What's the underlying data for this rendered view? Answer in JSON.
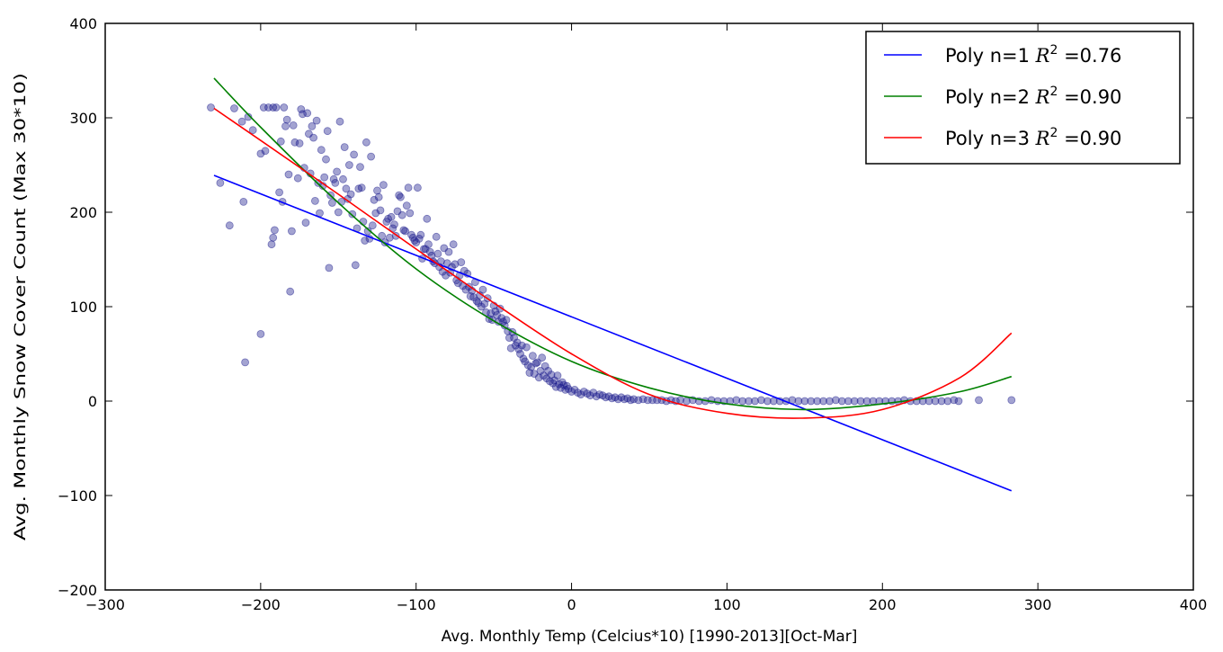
{
  "chart_data": {
    "type": "scatter",
    "title": "",
    "xlabel": "Avg. Monthly Temp (Celcius*10) [1990-2013][Oct-Mar]",
    "ylabel": "Avg. Monthly Snow Cover Count (Max 30*10)",
    "xlim": [
      -300,
      400
    ],
    "ylim": [
      -200,
      400
    ],
    "xticks": [
      "−300",
      "−200",
      "−100",
      "0",
      "100",
      "200",
      "300",
      "400"
    ],
    "yticks": [
      "−200",
      "−100",
      "0",
      "100",
      "200",
      "300",
      "400"
    ],
    "grid": false,
    "legend_position": "top-right",
    "scatter": {
      "color": "#1a1a8c",
      "points": [
        [
          -232,
          311
        ],
        [
          -226,
          231
        ],
        [
          -220,
          186
        ],
        [
          -217,
          310
        ],
        [
          -212,
          296
        ],
        [
          -211,
          211
        ],
        [
          -210,
          41
        ],
        [
          -208,
          301
        ],
        [
          -205,
          287
        ],
        [
          -200,
          71
        ],
        [
          -200,
          262
        ],
        [
          -198,
          311
        ],
        [
          -197,
          265
        ],
        [
          -195,
          311
        ],
        [
          -193,
          166
        ],
        [
          -192,
          311
        ],
        [
          -192,
          173
        ],
        [
          -191,
          181
        ],
        [
          -190,
          311
        ],
        [
          -188,
          221
        ],
        [
          -187,
          275
        ],
        [
          -186,
          211
        ],
        [
          -185,
          311
        ],
        [
          -184,
          291
        ],
        [
          -183,
          298
        ],
        [
          -182,
          240
        ],
        [
          -181,
          116
        ],
        [
          -180,
          180
        ],
        [
          -179,
          292
        ],
        [
          -178,
          274
        ],
        [
          -176,
          236
        ],
        [
          -175,
          273
        ],
        [
          -174,
          309
        ],
        [
          -173,
          304
        ],
        [
          -172,
          247
        ],
        [
          -171,
          189
        ],
        [
          -170,
          305
        ],
        [
          -169,
          283
        ],
        [
          -168,
          241
        ],
        [
          -167,
          291
        ],
        [
          -166,
          279
        ],
        [
          -165,
          212
        ],
        [
          -164,
          297
        ],
        [
          -163,
          231
        ],
        [
          -162,
          199
        ],
        [
          -161,
          266
        ],
        [
          -160,
          228
        ],
        [
          -159,
          237
        ],
        [
          -158,
          256
        ],
        [
          -157,
          286
        ],
        [
          -156,
          141
        ],
        [
          -155,
          218
        ],
        [
          -154,
          210
        ],
        [
          -153,
          235
        ],
        [
          -152,
          231
        ],
        [
          -151,
          243
        ],
        [
          -150,
          200
        ],
        [
          -149,
          296
        ],
        [
          -148,
          211
        ],
        [
          -147,
          235
        ],
        [
          -146,
          269
        ],
        [
          -145,
          225
        ],
        [
          -144,
          214
        ],
        [
          -143,
          250
        ],
        [
          -142,
          219
        ],
        [
          -141,
          198
        ],
        [
          -140,
          261
        ],
        [
          -139,
          144
        ],
        [
          -138,
          183
        ],
        [
          -137,
          225
        ],
        [
          -136,
          248
        ],
        [
          -135,
          226
        ],
        [
          -134,
          190
        ],
        [
          -133,
          170
        ],
        [
          -132,
          274
        ],
        [
          -131,
          180
        ],
        [
          -130,
          172
        ],
        [
          -129,
          259
        ],
        [
          -128,
          186
        ],
        [
          -127,
          213
        ],
        [
          -126,
          199
        ],
        [
          -125,
          223
        ],
        [
          -124,
          216
        ],
        [
          -123,
          202
        ],
        [
          -122,
          175
        ],
        [
          -121,
          229
        ],
        [
          -120,
          168
        ],
        [
          -119,
          190
        ],
        [
          -118,
          193
        ],
        [
          -117,
          173
        ],
        [
          -116,
          195
        ],
        [
          -115,
          183
        ],
        [
          -114,
          187
        ],
        [
          -113,
          175
        ],
        [
          -112,
          201
        ],
        [
          -111,
          218
        ],
        [
          -110,
          216
        ],
        [
          -109,
          197
        ],
        [
          -108,
          181
        ],
        [
          -107,
          180
        ],
        [
          -106,
          207
        ],
        [
          -105,
          226
        ],
        [
          -104,
          199
        ],
        [
          -103,
          176
        ],
        [
          -102,
          173
        ],
        [
          -101,
          170
        ],
        [
          -100,
          168
        ],
        [
          -99,
          226
        ],
        [
          -98,
          172
        ],
        [
          -97,
          176
        ],
        [
          -96,
          151
        ],
        [
          -95,
          161
        ],
        [
          -94,
          161
        ],
        [
          -93,
          193
        ],
        [
          -92,
          166
        ],
        [
          -91,
          158
        ],
        [
          -90,
          154
        ],
        [
          -89,
          148
        ],
        [
          -88,
          146
        ],
        [
          -87,
          174
        ],
        [
          -86,
          156
        ],
        [
          -85,
          142
        ],
        [
          -84,
          148
        ],
        [
          -83,
          137
        ],
        [
          -82,
          162
        ],
        [
          -81,
          133
        ],
        [
          -80,
          146
        ],
        [
          -79,
          158
        ],
        [
          -78,
          136
        ],
        [
          -77,
          142
        ],
        [
          -76,
          166
        ],
        [
          -75,
          145
        ],
        [
          -74,
          128
        ],
        [
          -73,
          125
        ],
        [
          -72,
          133
        ],
        [
          -71,
          147
        ],
        [
          -70,
          122
        ],
        [
          -69,
          138
        ],
        [
          -68,
          118
        ],
        [
          -67,
          135
        ],
        [
          -66,
          121
        ],
        [
          -65,
          111
        ],
        [
          -64,
          117
        ],
        [
          -63,
          110
        ],
        [
          -62,
          126
        ],
        [
          -61,
          106
        ],
        [
          -60,
          104
        ],
        [
          -59,
          112
        ],
        [
          -58,
          100
        ],
        [
          -57,
          118
        ],
        [
          -56,
          103
        ],
        [
          -55,
          94
        ],
        [
          -54,
          109
        ],
        [
          -53,
          87
        ],
        [
          -52,
          93
        ],
        [
          -51,
          86
        ],
        [
          -50,
          101
        ],
        [
          -49,
          95
        ],
        [
          -48,
          91
        ],
        [
          -47,
          84
        ],
        [
          -46,
          98
        ],
        [
          -45,
          88
        ],
        [
          -44,
          84
        ],
        [
          -43,
          80
        ],
        [
          -42,
          86
        ],
        [
          -41,
          74
        ],
        [
          -40,
          67
        ],
        [
          -39,
          56
        ],
        [
          -38,
          73
        ],
        [
          -37,
          67
        ],
        [
          -36,
          59
        ],
        [
          -35,
          62
        ],
        [
          -34,
          55
        ],
        [
          -33,
          50
        ],
        [
          -32,
          59
        ],
        [
          -31,
          45
        ],
        [
          -30,
          42
        ],
        [
          -29,
          57
        ],
        [
          -28,
          38
        ],
        [
          -27,
          30
        ],
        [
          -26,
          36
        ],
        [
          -25,
          48
        ],
        [
          -24,
          29
        ],
        [
          -23,
          40
        ],
        [
          -22,
          41
        ],
        [
          -21,
          25
        ],
        [
          -20,
          32
        ],
        [
          -19,
          46
        ],
        [
          -18,
          27
        ],
        [
          -17,
          37
        ],
        [
          -16,
          24
        ],
        [
          -15,
          32
        ],
        [
          -14,
          21
        ],
        [
          -13,
          28
        ],
        [
          -12,
          19
        ],
        [
          -11,
          22
        ],
        [
          -10,
          15
        ],
        [
          -9,
          27
        ],
        [
          -8,
          18
        ],
        [
          -7,
          14
        ],
        [
          -6,
          20
        ],
        [
          -5,
          17
        ],
        [
          -4,
          12
        ],
        [
          -3,
          16
        ],
        [
          -2,
          13
        ],
        [
          0,
          10
        ],
        [
          2,
          12
        ],
        [
          4,
          9
        ],
        [
          6,
          7
        ],
        [
          8,
          10
        ],
        [
          10,
          8
        ],
        [
          12,
          6
        ],
        [
          14,
          9
        ],
        [
          16,
          5
        ],
        [
          18,
          7
        ],
        [
          20,
          6
        ],
        [
          22,
          4
        ],
        [
          24,
          5
        ],
        [
          26,
          3
        ],
        [
          28,
          4
        ],
        [
          30,
          2
        ],
        [
          32,
          4
        ],
        [
          34,
          2
        ],
        [
          36,
          3
        ],
        [
          38,
          1
        ],
        [
          40,
          2
        ],
        [
          43,
          1
        ],
        [
          46,
          2
        ],
        [
          49,
          1
        ],
        [
          52,
          1
        ],
        [
          55,
          1
        ],
        [
          58,
          1
        ],
        [
          61,
          0
        ],
        [
          64,
          1
        ],
        [
          67,
          0
        ],
        [
          70,
          1
        ],
        [
          74,
          0
        ],
        [
          78,
          1
        ],
        [
          82,
          0
        ],
        [
          86,
          0
        ],
        [
          90,
          1
        ],
        [
          94,
          0
        ],
        [
          98,
          0
        ],
        [
          102,
          0
        ],
        [
          106,
          1
        ],
        [
          110,
          0
        ],
        [
          114,
          0
        ],
        [
          118,
          0
        ],
        [
          122,
          1
        ],
        [
          126,
          0
        ],
        [
          130,
          0
        ],
        [
          134,
          0
        ],
        [
          138,
          0
        ],
        [
          142,
          1
        ],
        [
          146,
          0
        ],
        [
          150,
          0
        ],
        [
          154,
          0
        ],
        [
          158,
          0
        ],
        [
          162,
          0
        ],
        [
          166,
          0
        ],
        [
          170,
          1
        ],
        [
          174,
          0
        ],
        [
          178,
          0
        ],
        [
          182,
          0
        ],
        [
          186,
          0
        ],
        [
          190,
          0
        ],
        [
          194,
          0
        ],
        [
          198,
          0
        ],
        [
          202,
          0
        ],
        [
          206,
          0
        ],
        [
          210,
          0
        ],
        [
          214,
          1
        ],
        [
          218,
          0
        ],
        [
          222,
          0
        ],
        [
          226,
          0
        ],
        [
          230,
          0
        ],
        [
          234,
          0
        ],
        [
          238,
          0
        ],
        [
          242,
          0
        ],
        [
          246,
          1
        ],
        [
          249,
          0
        ],
        [
          262,
          1
        ],
        [
          283,
          1
        ]
      ]
    },
    "series": [
      {
        "name": "Poly n=1",
        "r2_label": "R",
        "r2_sup": "2",
        "r2_value": " =0.76",
        "color": "#0000ff",
        "x": [
          -230,
          283
        ],
        "y": [
          239,
          -95
        ]
      },
      {
        "name": "Poly n=2",
        "r2_label": "R",
        "r2_sup": "2",
        "r2_value": " =0.90",
        "color": "#008000",
        "x": [
          -230,
          -200,
          -150,
          -100,
          -50,
          0,
          50,
          100,
          150,
          200,
          250,
          283
        ],
        "y": [
          342,
          290,
          210,
          140,
          85,
          42,
          14,
          -3,
          -9,
          -3,
          10,
          26
        ]
      },
      {
        "name": "Poly n=3",
        "r2_label": "R",
        "r2_sup": "2",
        "r2_value": " =0.90",
        "color": "#ff0000",
        "x": [
          -230,
          -200,
          -150,
          -100,
          -50,
          0,
          50,
          100,
          150,
          200,
          250,
          283
        ],
        "y": [
          310,
          276,
          219,
          161,
          104,
          50,
          7,
          -13,
          -18,
          -9,
          25,
          72
        ]
      }
    ]
  }
}
